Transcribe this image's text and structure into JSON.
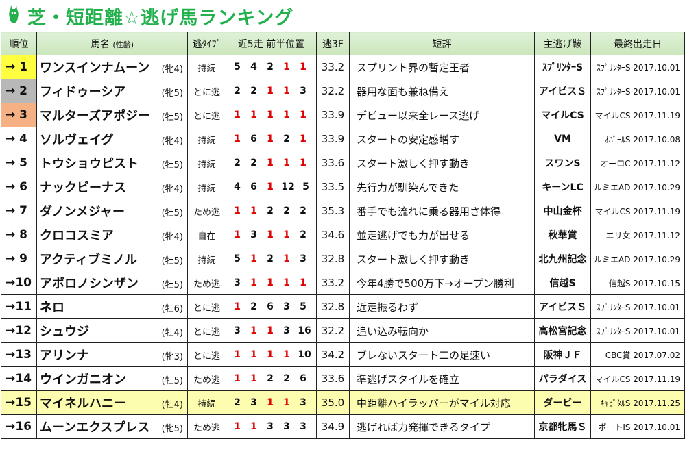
{
  "title": "芝・短距離☆逃げ馬ランキング",
  "columns": [
    "順位",
    "馬名",
    "(性齢)",
    "逃ﾀｲﾌﾟ",
    "近5走 前半位置",
    "逃3F",
    "短評",
    "主逃げ鞍",
    "最終出走日"
  ],
  "rows": [
    {
      "rank": "→ 1",
      "name": "ワンスインナムーン",
      "sex": "(牝4)",
      "type": "持続",
      "pos": [
        "5",
        "4",
        "2",
        "1",
        "1"
      ],
      "f3": "33.2",
      "comment": "スプリント界の暫定王者",
      "race": "ｽﾌﾟﾘﾝﾀｰS",
      "last": "ｽﾌﾟﾘﾝﾀｰS 2017.10.01"
    },
    {
      "rank": "→ 2",
      "name": "フィドゥーシア",
      "sex": "(牝5)",
      "type": "とに逃",
      "pos": [
        "2",
        "2",
        "1",
        "1",
        "3"
      ],
      "f3": "32.2",
      "comment": "器用な面も兼ね備え",
      "race": "アイビスＳ",
      "last": "ｽﾌﾟﾘﾝﾀｰS 2017.10.01"
    },
    {
      "rank": "→ 3",
      "name": "マルターズアポジー",
      "sex": "(牡5)",
      "type": "とに逃",
      "pos": [
        "1",
        "1",
        "1",
        "1",
        "1"
      ],
      "f3": "33.9",
      "comment": "デビュー以来全レース逃げ",
      "race": "マイルCS",
      "last": "マイルCS 2017.11.19"
    },
    {
      "rank": "→ 4",
      "name": "ソルヴェイグ",
      "sex": "(牝4)",
      "type": "持続",
      "pos": [
        "1",
        "6",
        "1",
        "2",
        "1"
      ],
      "f3": "33.9",
      "comment": "スタートの安定感増す",
      "race": "VM",
      "last": "ｵﾊﾟｰﾙS 2017.10.08"
    },
    {
      "rank": "→ 5",
      "name": "トウショウピスト",
      "sex": "(牡5)",
      "type": "持続",
      "pos": [
        "2",
        "2",
        "1",
        "1",
        "1"
      ],
      "f3": "33.6",
      "comment": "スタート激しく押す動き",
      "race": "スワンS",
      "last": "オーロC 2017.11.12"
    },
    {
      "rank": "→ 6",
      "name": "ナックビーナス",
      "sex": "(牝4)",
      "type": "持続",
      "pos": [
        "4",
        "6",
        "1",
        "12",
        "5"
      ],
      "f3": "33.5",
      "comment": "先行力が馴染んできた",
      "race": "キーンLC",
      "last": "ルミエAD 2017.10.29"
    },
    {
      "rank": "→ 7",
      "name": "ダノンメジャー",
      "sex": "(牡5)",
      "type": "ため逃",
      "pos": [
        "1",
        "1",
        "2",
        "2",
        "2"
      ],
      "f3": "35.3",
      "comment": "番手でも流れに乗る器用さ体得",
      "race": "中山金杯",
      "last": "マイルCS 2017.11.19"
    },
    {
      "rank": "→ 8",
      "name": "クロコスミア",
      "sex": "(牝4)",
      "type": "自在",
      "pos": [
        "1",
        "3",
        "1",
        "1",
        "2"
      ],
      "f3": "34.6",
      "comment": "並走逃げでも力が出せる",
      "race": "秋華賞",
      "last": "エリ女 2017.11.12"
    },
    {
      "rank": "→ 9",
      "name": "アクティブミノル",
      "sex": "(牡5)",
      "type": "持続",
      "pos": [
        "5",
        "1",
        "2",
        "1",
        "3"
      ],
      "f3": "32.8",
      "comment": "スタート激しく押す動き",
      "race": "北九州記念",
      "last": "ルミエAD 2017.10.29"
    },
    {
      "rank": "→10",
      "name": "アポロノシンザン",
      "sex": "(牡5)",
      "type": "ため逃",
      "pos": [
        "3",
        "1",
        "1",
        "1",
        "1"
      ],
      "f3": "33.2",
      "comment": "今年4勝で500万下→オープン勝利",
      "race": "信越S",
      "last": "信越S 2017.10.15"
    },
    {
      "rank": "→11",
      "name": "ネロ",
      "sex": "(牡6)",
      "type": "とに逃",
      "pos": [
        "1",
        "2",
        "6",
        "3",
        "5"
      ],
      "f3": "32.8",
      "comment": "近走振るわず",
      "race": "アイビスＳ",
      "last": "ｽﾌﾟﾘﾝﾀｰS 2017.10.01"
    },
    {
      "rank": "→12",
      "name": "シュウジ",
      "sex": "(牡4)",
      "type": "とに逃",
      "pos": [
        "3",
        "1",
        "1",
        "3",
        "16"
      ],
      "f3": "32.2",
      "comment": "追い込み転向か",
      "race": "高松宮記念",
      "last": "ｽﾌﾟﾘﾝﾀｰS 2017.10.01"
    },
    {
      "rank": "→13",
      "name": "アリンナ",
      "sex": "(牝3)",
      "type": "とに逃",
      "pos": [
        "1",
        "1",
        "1",
        "1",
        "10"
      ],
      "f3": "34.2",
      "comment": "ブレないスタート二の足速い",
      "race": "阪神ＪＦ",
      "last": "CBC賞 2017.07.02"
    },
    {
      "rank": "→14",
      "name": "ウインガニオン",
      "sex": "(牡5)",
      "type": "ため逃",
      "pos": [
        "1",
        "1",
        "2",
        "2",
        "6"
      ],
      "f3": "33.6",
      "comment": "準逃げスタイルを確立",
      "race": "パラダイス",
      "last": "マイルCS 2017.11.19"
    },
    {
      "rank": "→15",
      "name": "マイネルハニー",
      "sex": "(牡4)",
      "type": "持続",
      "pos": [
        "2",
        "3",
        "1",
        "1",
        "3"
      ],
      "f3": "35.0",
      "comment": "中距離ハイラッパーがマイル対応",
      "race": "ダービー",
      "last": "ｷｬﾋﾟﾀﾙS 2017.11.25"
    },
    {
      "rank": "→16",
      "name": "ムーンエクスプレス",
      "sex": "(牝5)",
      "type": "ため逃",
      "pos": [
        "1",
        "1",
        "3",
        "3",
        "3"
      ],
      "f3": "34.9",
      "comment": "逃げれば力発揮できるタイプ",
      "race": "京都牝馬Ｓ",
      "last": "ポートIS 2017.10.01"
    }
  ],
  "colors": {
    "title": "#22b14c",
    "header": "#cbe6bd",
    "highlight": "#fdfdb0",
    "first": "#ffff40",
    "second": "#b8b8b8",
    "third": "#f5b183",
    "red": "#e00000"
  }
}
